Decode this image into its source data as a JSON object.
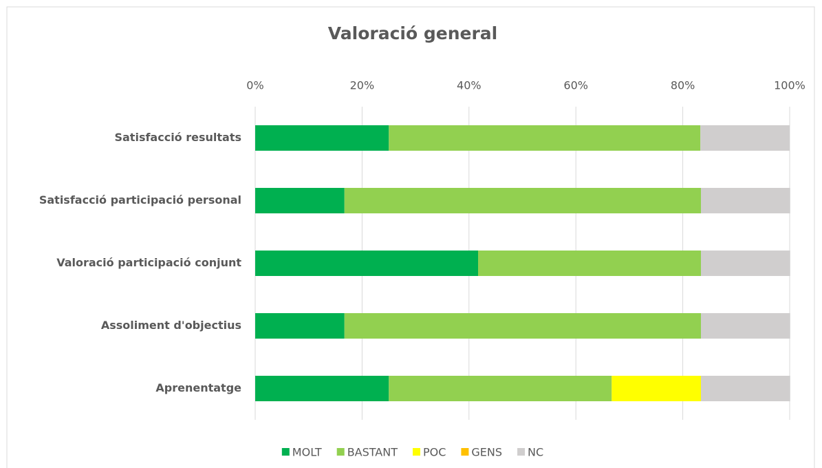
{
  "chart_data": {
    "type": "stacked-bar-horizontal",
    "title": "Valoració general",
    "categories": [
      "Satisfacció resultats",
      "Satisfacció participació personal",
      "Valoració participació conjunt",
      "Assoliment d'objectius",
      "Aprenentatge"
    ],
    "series": [
      {
        "name": "MOLT",
        "color": "#00b050",
        "values": [
          25,
          16.7,
          41.7,
          16.7,
          25
        ]
      },
      {
        "name": "BASTANT",
        "color": "#92d050",
        "values": [
          58.3,
          66.7,
          41.7,
          66.7,
          41.7
        ]
      },
      {
        "name": "POC",
        "color": "#ffff00",
        "values": [
          0,
          0,
          0,
          0,
          16.7
        ]
      },
      {
        "name": "GENS",
        "color": "#ffc000",
        "values": [
          0,
          0,
          0,
          0,
          0
        ]
      },
      {
        "name": "NC",
        "color": "#d0cece",
        "values": [
          16.7,
          16.7,
          16.7,
          16.7,
          16.7
        ]
      }
    ],
    "xlim": [
      0,
      100
    ],
    "xticks": [
      {
        "value": 0,
        "label": "0%"
      },
      {
        "value": 20,
        "label": "20%"
      },
      {
        "value": 40,
        "label": "40%"
      },
      {
        "value": 60,
        "label": "60%"
      },
      {
        "value": 80,
        "label": "80%"
      },
      {
        "value": 100,
        "label": "100%"
      }
    ],
    "grid": true,
    "legend": "bottom"
  }
}
